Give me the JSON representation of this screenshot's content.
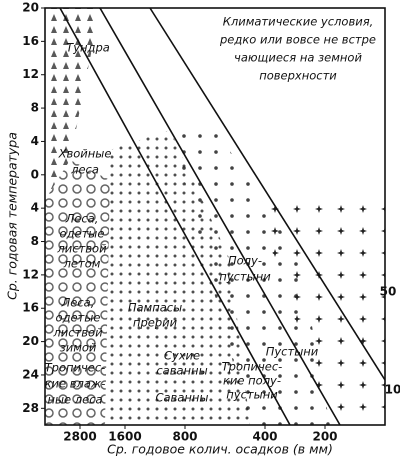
{
  "chart_data": {
    "type": "region-map",
    "y_label": "Ср. годовая температура",
    "x_label": "Ср. годовое колич. осадков (в мм)",
    "ylim": [
      -30,
      20
    ],
    "yticks": [
      20,
      16,
      12,
      8,
      4,
      0,
      {
        "value": -4,
        "label": "4"
      },
      {
        "value": -8,
        "label": "8"
      },
      {
        "value": -12,
        "label": "12"
      },
      {
        "value": -16,
        "label": "16"
      },
      {
        "value": -20,
        "label": "20"
      },
      {
        "value": -24,
        "label": "24"
      },
      {
        "value": -28,
        "label": "28"
      }
    ],
    "xticks": [
      2800,
      1600,
      800,
      400,
      200
    ],
    "regions": [
      {
        "lines": [
          "Климатические условия,",
          "редко или вовсе не встре",
          "чающиеся на земной",
          "поверхности"
        ]
      },
      {
        "lines": [
          "Тундра"
        ]
      },
      {
        "lines": [
          "Хвойные",
          "леса"
        ]
      },
      {
        "lines": [
          "Леса,",
          "одетые",
          "листвой",
          "летом"
        ]
      },
      {
        "lines": [
          "Леса,",
          "одетые",
          "листвой",
          "зимой"
        ]
      },
      {
        "lines": [
          "Тропичес-",
          "кие влаж-",
          "ные леса"
        ]
      },
      {
        "lines": [
          "Пампасы",
          "прерии"
        ]
      },
      {
        "lines": [
          "Сухие",
          "саванны"
        ]
      },
      {
        "lines": [
          "Саванны"
        ]
      },
      {
        "lines": [
          "Тропичес-",
          "кие полу-",
          "пустыни"
        ]
      },
      {
        "lines": [
          "Полу-",
          "пустыни"
        ]
      },
      {
        "lines": [
          "Пустыни"
        ]
      }
    ],
    "edge_labels": [
      "50",
      "10"
    ]
  }
}
